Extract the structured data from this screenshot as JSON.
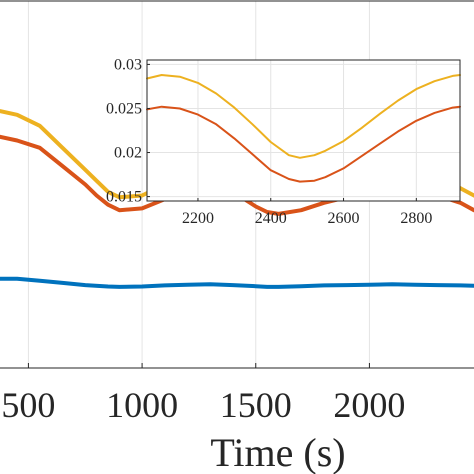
{
  "chart_data": [
    {
      "type": "line",
      "title": "",
      "xlabel": "Time (s)",
      "ylabel": "",
      "xlim": [
        375,
        2460
      ],
      "ylim": [
        0,
        1
      ],
      "x_ticks": [
        500,
        1000,
        1500,
        2000
      ],
      "x_tick_labels": [
        "500",
        "1000",
        "1500",
        "2000"
      ],
      "grid": true,
      "series": [
        {
          "color": "#EDB120",
          "x": [
            375,
            450,
            550,
            650,
            750,
            800,
            850,
            900,
            1000,
            1100,
            1200,
            1300,
            1350,
            1400,
            1500,
            1550,
            1600,
            1700,
            1800,
            1900,
            2000,
            2100,
            2150,
            2200,
            2300,
            2400,
            2460
          ],
          "y": [
            0.7,
            0.69,
            0.66,
            0.6,
            0.54,
            0.51,
            0.48,
            0.465,
            0.47,
            0.5,
            0.53,
            0.55,
            0.545,
            0.52,
            0.48,
            0.473,
            0.47,
            0.48,
            0.5,
            0.51,
            0.52,
            0.54,
            0.543,
            0.535,
            0.51,
            0.49,
            0.47
          ]
        },
        {
          "color": "#D95319",
          "x": [
            375,
            450,
            550,
            650,
            750,
            800,
            850,
            900,
            1000,
            1100,
            1200,
            1300,
            1350,
            1400,
            1500,
            1550,
            1600,
            1700,
            1800,
            1900,
            2000,
            2100,
            2150,
            2200,
            2300,
            2400,
            2460
          ],
          "y": [
            0.63,
            0.62,
            0.6,
            0.55,
            0.5,
            0.47,
            0.445,
            0.43,
            0.435,
            0.46,
            0.49,
            0.51,
            0.505,
            0.48,
            0.44,
            0.425,
            0.42,
            0.43,
            0.45,
            0.465,
            0.48,
            0.5,
            0.503,
            0.495,
            0.47,
            0.45,
            0.43
          ]
        },
        {
          "color": "#0072BD",
          "x": [
            375,
            450,
            550,
            650,
            750,
            850,
            900,
            1000,
            1100,
            1200,
            1300,
            1400,
            1500,
            1550,
            1600,
            1700,
            1800,
            1900,
            2000,
            2100,
            2200,
            2300,
            2400,
            2460
          ],
          "y": [
            0.243,
            0.243,
            0.238,
            0.232,
            0.226,
            0.222,
            0.221,
            0.222,
            0.225,
            0.227,
            0.228,
            0.226,
            0.223,
            0.221,
            0.221,
            0.223,
            0.225,
            0.226,
            0.227,
            0.228,
            0.227,
            0.226,
            0.225,
            0.224
          ]
        }
      ]
    },
    {
      "type": "line",
      "title": "",
      "xlabel": "",
      "ylabel": "",
      "xlim": [
        2060,
        2920
      ],
      "ylim": [
        0.0145,
        0.0305
      ],
      "x_ticks": [
        2200,
        2400,
        2600,
        2800
      ],
      "x_tick_labels": [
        "2200",
        "2400",
        "2600",
        "2800"
      ],
      "y_ticks": [
        0.015,
        0.02,
        0.025,
        0.03
      ],
      "y_tick_labels": [
        "0.015",
        "0.02",
        "0.025",
        "0.03"
      ],
      "grid": true,
      "series": [
        {
          "color": "#EDB120",
          "x": [
            2060,
            2100,
            2150,
            2200,
            2250,
            2300,
            2350,
            2400,
            2450,
            2480,
            2520,
            2550,
            2600,
            2650,
            2700,
            2750,
            2800,
            2850,
            2900,
            2920
          ],
          "y": [
            0.0284,
            0.0288,
            0.0286,
            0.0279,
            0.0267,
            0.0251,
            0.0232,
            0.0212,
            0.0197,
            0.0194,
            0.0197,
            0.0202,
            0.0213,
            0.0228,
            0.0244,
            0.0259,
            0.0272,
            0.0281,
            0.0287,
            0.0288
          ]
        },
        {
          "color": "#D95319",
          "x": [
            2060,
            2100,
            2150,
            2200,
            2250,
            2300,
            2350,
            2400,
            2450,
            2480,
            2520,
            2550,
            2600,
            2650,
            2700,
            2750,
            2800,
            2850,
            2900,
            2920
          ],
          "y": [
            0.0249,
            0.0252,
            0.025,
            0.0243,
            0.0232,
            0.0216,
            0.0198,
            0.018,
            0.017,
            0.0167,
            0.0168,
            0.0172,
            0.0182,
            0.0196,
            0.021,
            0.0224,
            0.0236,
            0.0245,
            0.0251,
            0.0252
          ]
        }
      ]
    }
  ]
}
